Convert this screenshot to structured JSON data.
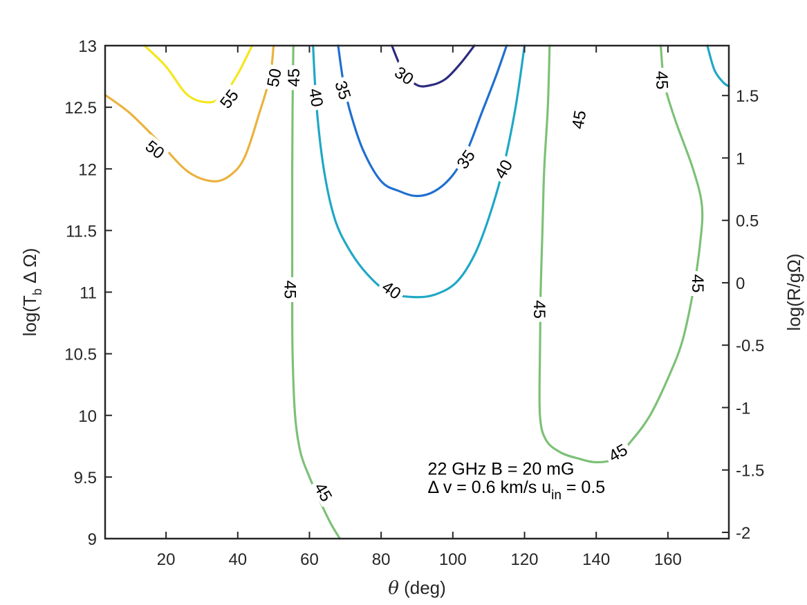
{
  "chart_data": {
    "type": "contour",
    "xlabel_var": "θ",
    "xlabel_unit": "(deg)",
    "ylabel_left": {
      "prefix": "log(T",
      "sub": "b",
      "suffix": " Δ Ω)"
    },
    "ylabel_right": "log(R/gΩ)",
    "xlim": [
      3,
      177
    ],
    "ylim": [
      9,
      13
    ],
    "ylim_right": [
      -2.05,
      1.9
    ],
    "xticks": [
      20,
      40,
      60,
      80,
      100,
      120,
      140,
      160
    ],
    "xtick_labels": [
      "20",
      "40",
      "60",
      "80",
      "100",
      "120",
      "140",
      "160"
    ],
    "yticks": [
      9,
      9.5,
      10,
      10.5,
      11,
      11.5,
      12,
      12.5,
      13
    ],
    "ytick_labels": [
      "9",
      "9.5",
      "10",
      "10.5",
      "11",
      "11.5",
      "12",
      "12.5",
      "13"
    ],
    "yticks_right": [
      -2,
      -1.5,
      -1,
      -0.5,
      0,
      0.5,
      1,
      1.5
    ],
    "ytick_labels_right": [
      "-2",
      "-1.5",
      "-1",
      "-0.5",
      "0",
      "0.5",
      "1",
      "1.5"
    ],
    "annotation": {
      "line1": "22 GHz  B = 20 mG",
      "line2_prefix": "Δ v = 0.6 km/s  u",
      "line2_sub": "in",
      "line2_suffix": " = 0.5"
    },
    "contours": [
      {
        "level": "55",
        "color": "#f5e61e",
        "points": [
          [
            14,
            13
          ],
          [
            20,
            12.83
          ],
          [
            26,
            12.6
          ],
          [
            32,
            12.54
          ],
          [
            36,
            12.6
          ],
          [
            40,
            12.77
          ],
          [
            44,
            13
          ]
        ]
      },
      {
        "level": "50",
        "color": "#eab23d",
        "points": [
          [
            3,
            12.6
          ],
          [
            10,
            12.45
          ],
          [
            18,
            12.22
          ],
          [
            26,
            11.98
          ],
          [
            33,
            11.9
          ],
          [
            38,
            11.95
          ],
          [
            42,
            12.1
          ],
          [
            46,
            12.45
          ],
          [
            49,
            12.75
          ],
          [
            50,
            13
          ]
        ]
      },
      {
        "level": "45",
        "color": "#7cc176",
        "points": [
          [
            55.5,
            13
          ],
          [
            55.3,
            12.5
          ],
          [
            55.2,
            12
          ],
          [
            55.2,
            11.5
          ],
          [
            55.2,
            11
          ],
          [
            55.3,
            10.5
          ],
          [
            56,
            10
          ],
          [
            57.5,
            9.7
          ],
          [
            60,
            9.5
          ],
          [
            63,
            9.3
          ],
          [
            66,
            9.12
          ],
          [
            68.5,
            9
          ]
        ]
      },
      {
        "level": "40",
        "color": "#1fa7c6",
        "points": [
          [
            61,
            13
          ],
          [
            62,
            12.5
          ],
          [
            64,
            12
          ],
          [
            67,
            11.6
          ],
          [
            71,
            11.35
          ],
          [
            76,
            11.15
          ],
          [
            82,
            11.0
          ],
          [
            89,
            10.96
          ],
          [
            95,
            10.98
          ],
          [
            101,
            11.08
          ],
          [
            106,
            11.3
          ],
          [
            110,
            11.6
          ],
          [
            114,
            12
          ],
          [
            117.5,
            12.5
          ],
          [
            120,
            13
          ]
        ]
      },
      {
        "level": "35",
        "color": "#1f6fd0",
        "points": [
          [
            68,
            13
          ],
          [
            69.5,
            12.7
          ],
          [
            71.5,
            12.45
          ],
          [
            75,
            12.15
          ],
          [
            80,
            11.9
          ],
          [
            85,
            11.82
          ],
          [
            90,
            11.78
          ],
          [
            95,
            11.82
          ],
          [
            100,
            11.95
          ],
          [
            104,
            12.15
          ],
          [
            108,
            12.45
          ],
          [
            112,
            12.75
          ],
          [
            115,
            13
          ]
        ]
      },
      {
        "level": "30",
        "color": "#2c2b7e",
        "points": [
          [
            83,
            13
          ],
          [
            86,
            12.8
          ],
          [
            90,
            12.68
          ],
          [
            94,
            12.68
          ],
          [
            98,
            12.73
          ],
          [
            102,
            12.85
          ],
          [
            106,
            13
          ]
        ]
      },
      {
        "level": "45",
        "color": "#7cc176",
        "points": [
          [
            127,
            13
          ],
          [
            126.5,
            12.5
          ],
          [
            125.5,
            12
          ],
          [
            125,
            11.5
          ],
          [
            124.5,
            11
          ],
          [
            124.3,
            10.5
          ],
          [
            124.3,
            10
          ],
          [
            126,
            9.8
          ],
          [
            130,
            9.7
          ],
          [
            135,
            9.65
          ],
          [
            140,
            9.62
          ],
          [
            145,
            9.65
          ],
          [
            150,
            9.8
          ],
          [
            155,
            10
          ],
          [
            160,
            10.3
          ],
          [
            164,
            10.6
          ],
          [
            167,
            11
          ],
          [
            169,
            11.4
          ],
          [
            169.5,
            11.7
          ],
          [
            167,
            12
          ],
          [
            162,
            12.4
          ],
          [
            159,
            12.7
          ],
          [
            158,
            13
          ]
        ]
      },
      {
        "level": "",
        "color": "#1fa7c6",
        "points": [
          [
            171,
            13
          ],
          [
            173,
            12.8
          ],
          [
            175.5,
            12.7
          ],
          [
            177,
            12.67
          ]
        ]
      }
    ],
    "contour_labels": [
      {
        "text": "55",
        "x": 37.5,
        "y": 12.57,
        "rot": -52
      },
      {
        "text": "50",
        "x": 50.0,
        "y": 12.74,
        "rot": -80
      },
      {
        "text": "45",
        "x": 55.5,
        "y": 12.74,
        "rot": -90
      },
      {
        "text": "40",
        "x": 62.0,
        "y": 12.58,
        "rot": 80
      },
      {
        "text": "35",
        "x": 69.5,
        "y": 12.64,
        "rot": 72
      },
      {
        "text": "30",
        "x": 86.5,
        "y": 12.76,
        "rot": 35
      },
      {
        "text": "50",
        "x": 17.0,
        "y": 12.16,
        "rot": 38
      },
      {
        "text": "35",
        "x": 103.5,
        "y": 12.08,
        "rot": -55
      },
      {
        "text": "40",
        "x": 114.0,
        "y": 12.0,
        "rot": -60
      },
      {
        "text": "45",
        "x": 135.0,
        "y": 12.4,
        "rot": -80
      },
      {
        "text": "45",
        "x": 158.5,
        "y": 12.72,
        "rot": 88
      },
      {
        "text": "45",
        "x": 54.8,
        "y": 11.02,
        "rot": 90
      },
      {
        "text": "40",
        "x": 83.0,
        "y": 11.02,
        "rot": 35
      },
      {
        "text": "45",
        "x": 124.3,
        "y": 10.86,
        "rot": 90
      },
      {
        "text": "45",
        "x": 168.5,
        "y": 11.07,
        "rot": 90
      },
      {
        "text": "45",
        "x": 64.0,
        "y": 9.38,
        "rot": 60
      },
      {
        "text": "45",
        "x": 146.0,
        "y": 9.7,
        "rot": -30
      }
    ],
    "grid": false
  }
}
